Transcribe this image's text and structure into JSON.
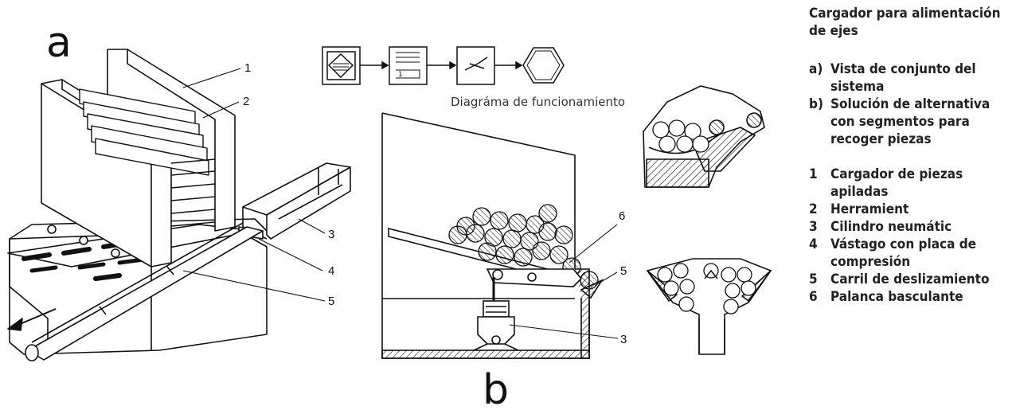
{
  "figure": {
    "letter_a": "a",
    "letter_b": "b",
    "flow_caption": "Diagráma de funcionamiento",
    "callouts_a": [
      "1",
      "2",
      "3",
      "4",
      "5"
    ],
    "callouts_b": [
      "6",
      "5",
      "3"
    ]
  },
  "legend": {
    "title": "Cargador para alimentación de ejes",
    "views": [
      {
        "key": "a)",
        "text": "Vista de conjunto del sistema"
      },
      {
        "key": "b)",
        "text": "Solución de alternativa con segmentos para recoger piezas"
      }
    ],
    "items": [
      {
        "key": "1",
        "text": "Cargador de piezas apiladas"
      },
      {
        "key": "2",
        "text": "Herramient"
      },
      {
        "key": "3",
        "text": "Cilindro neumátic"
      },
      {
        "key": "4",
        "text": "Vástago con placa de compresión"
      },
      {
        "key": "5",
        "text": "Carril de deslizamiento"
      },
      {
        "key": "6",
        "text": "Palanca basculante"
      }
    ]
  }
}
